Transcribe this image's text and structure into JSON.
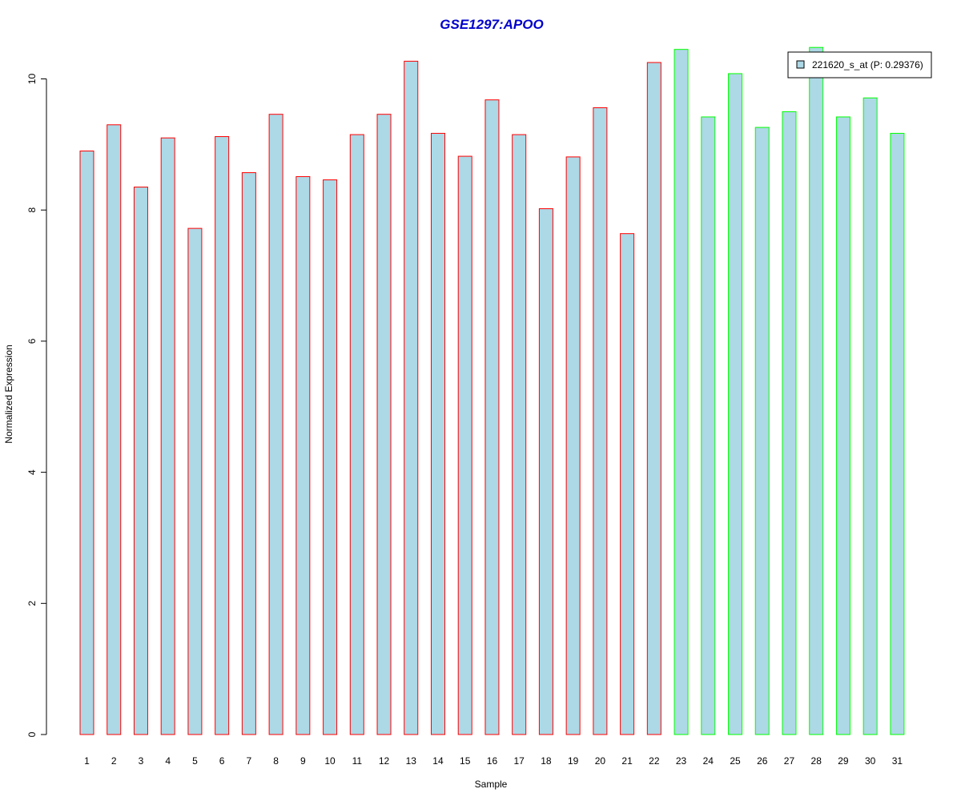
{
  "chart_data": {
    "type": "bar",
    "title": "GSE1297:APOO",
    "title_color": "#0000cc",
    "xlabel": "Sample",
    "ylabel": "Normalized Expression",
    "ylim": [
      0,
      10.5
    ],
    "yticks": [
      0,
      2,
      4,
      6,
      8,
      10
    ],
    "grid": false,
    "legend_position": "top-right",
    "fill_color": "#add8e6",
    "categories": [
      "1",
      "2",
      "3",
      "4",
      "5",
      "6",
      "7",
      "8",
      "9",
      "10",
      "11",
      "12",
      "13",
      "14",
      "15",
      "16",
      "17",
      "18",
      "19",
      "20",
      "21",
      "22",
      "23",
      "24",
      "25",
      "26",
      "27",
      "28",
      "29",
      "30",
      "31"
    ],
    "series": [
      {
        "name": "221620_s_at (P: 0.29376)",
        "values": [
          8.9,
          9.3,
          8.35,
          9.1,
          7.72,
          9.12,
          8.57,
          9.46,
          8.51,
          8.46,
          9.15,
          9.46,
          10.27,
          9.17,
          8.82,
          9.68,
          9.15,
          8.02,
          8.81,
          9.56,
          7.64,
          10.25,
          10.45,
          9.42,
          10.08,
          9.26,
          9.5,
          10.48,
          9.42,
          9.71,
          9.17
        ],
        "border_colors": [
          "#ff0000",
          "#ff0000",
          "#ff0000",
          "#ff0000",
          "#ff0000",
          "#ff0000",
          "#ff0000",
          "#ff0000",
          "#ff0000",
          "#ff0000",
          "#ff0000",
          "#ff0000",
          "#ff0000",
          "#ff0000",
          "#ff0000",
          "#ff0000",
          "#ff0000",
          "#ff0000",
          "#ff0000",
          "#ff0000",
          "#ff0000",
          "#ff0000",
          "#00ff00",
          "#00ff00",
          "#00ff00",
          "#00ff00",
          "#00ff00",
          "#00ff00",
          "#00ff00",
          "#00ff00",
          "#00ff00"
        ]
      }
    ]
  }
}
